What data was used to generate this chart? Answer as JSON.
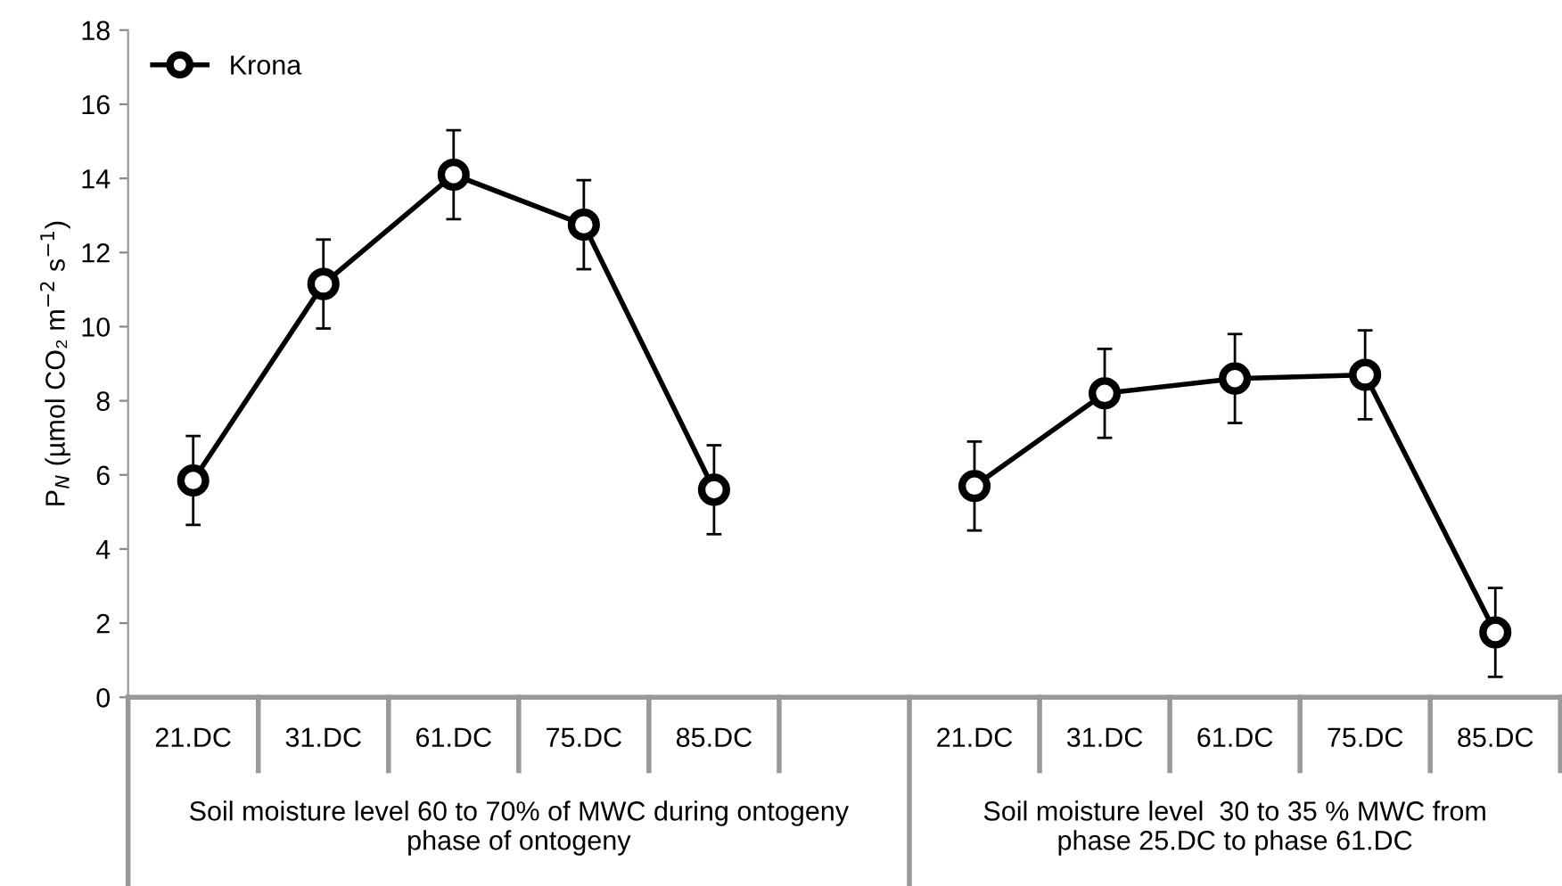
{
  "chart_data": {
    "type": "line",
    "ylabel": "P$_{N}$ (µmol CO₂ m$^{−2}$ s$^{−1}$)",
    "categories": [
      "21.DC",
      "31.DC",
      "61.DC",
      "75.DC",
      "85.DC",
      null,
      "21.DC",
      "31.DC",
      "61.DC",
      "75.DC",
      "85.DC"
    ],
    "series": [
      {
        "name": "Krona",
        "color": "#000000",
        "values": [
          5.85,
          11.15,
          14.1,
          12.75,
          5.6,
          null,
          5.7,
          8.2,
          8.6,
          8.7,
          1.75
        ],
        "errors": [
          1.2,
          1.2,
          1.2,
          1.2,
          1.2,
          null,
          1.2,
          1.2,
          1.2,
          1.2,
          1.2
        ]
      }
    ],
    "ylim": [
      0,
      18
    ],
    "yticks": [
      0,
      2,
      4,
      6,
      8,
      10,
      12,
      14,
      16,
      18
    ],
    "annotations": [
      "Soil moisture level 60 to 70% of MWC during ontogeny\nphase of ontogeny",
      "Soil moisture level  30 to 35 % MWC from\nphase 25.DC to phase 61.DC"
    ],
    "marker": "circle",
    "line_style": "solid",
    "legend": "top left",
    "grid": false
  }
}
